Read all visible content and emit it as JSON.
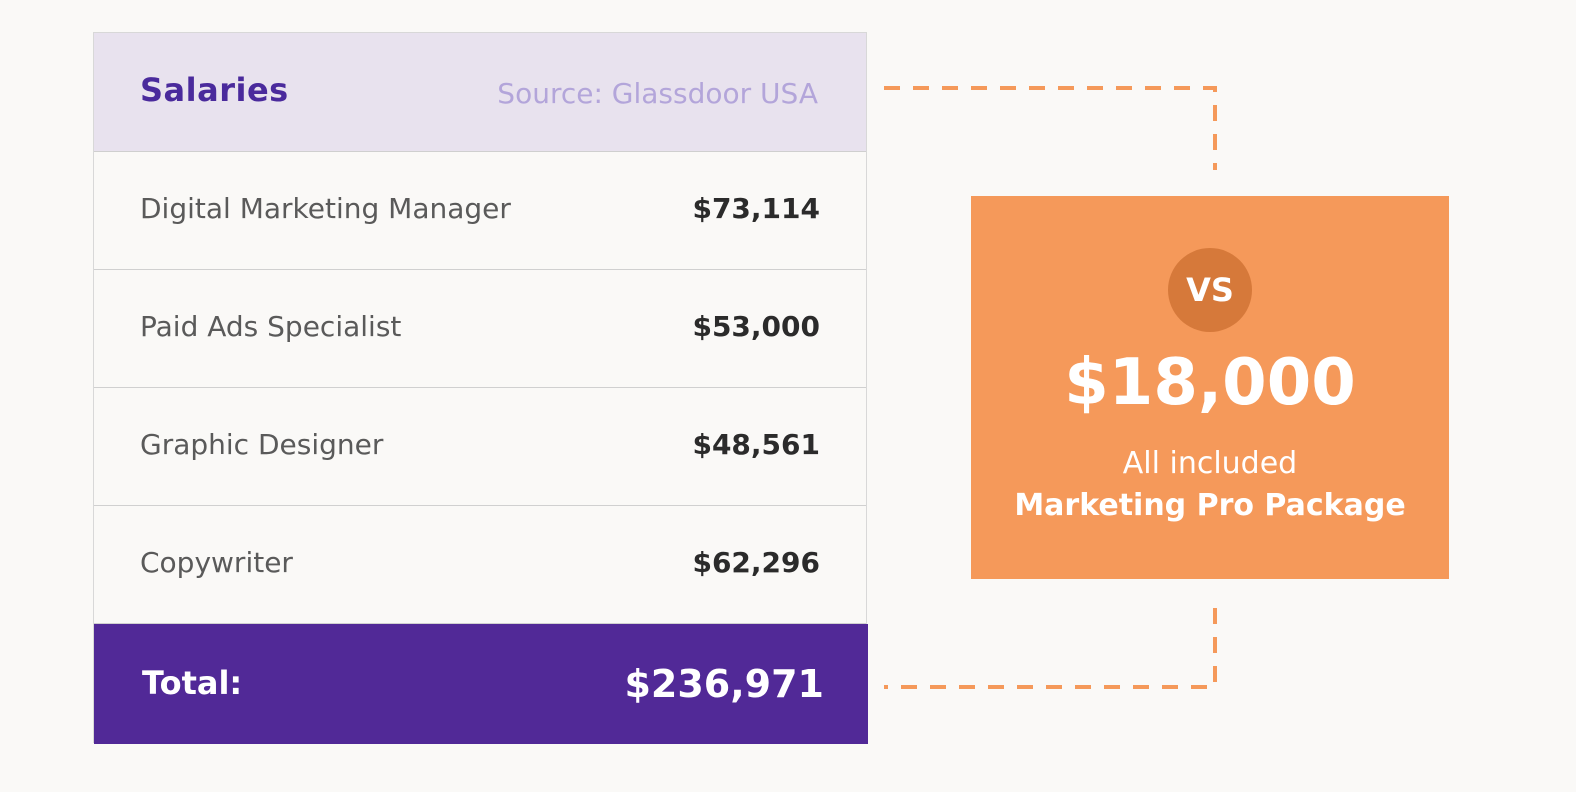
{
  "table": {
    "title": "Salaries",
    "source": "Source: Glassdoor USA",
    "rows": [
      {
        "label": "Digital Marketing Manager",
        "value": "$73,114"
      },
      {
        "label": "Paid Ads Specialist",
        "value": "$53,000"
      },
      {
        "label": "Graphic Designer",
        "value": "$48,561"
      },
      {
        "label": "Copywriter",
        "value": "$62,296"
      }
    ],
    "total_label": "Total:",
    "total_value": "$236,971"
  },
  "comparison": {
    "badge": "VS",
    "price": "$18,000",
    "line1": "All included",
    "line2": "Marketing Pro Package"
  },
  "colors": {
    "header_bg": "#e8e2ee",
    "title": "#4a2a9c",
    "source": "#b3a5da",
    "total_bg": "#512997",
    "accent_orange": "#f5995a",
    "badge_orange": "#d6793a",
    "dash": "#f5995a"
  }
}
